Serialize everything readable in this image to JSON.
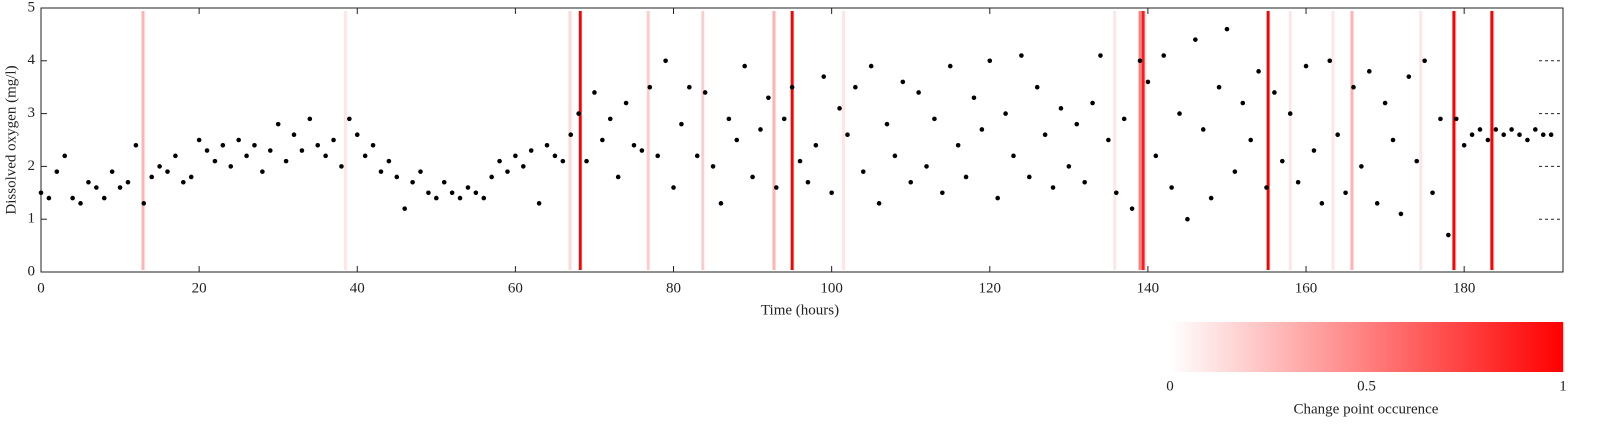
{
  "chart_data": {
    "type": "scatter",
    "xlabel": "Time (hours)",
    "ylabel": "Dissolved oxygen (mg/l)",
    "xlim": [
      0,
      192.5
    ],
    "ylim": [
      0,
      5
    ],
    "xticks": [
      0,
      20,
      40,
      60,
      80,
      100,
      120,
      140,
      160,
      180
    ],
    "yticks": [
      0,
      1,
      2,
      3,
      4,
      5
    ],
    "color": "#000000",
    "x": [
      0,
      1,
      2,
      3,
      4,
      5,
      6,
      7,
      8,
      9,
      10,
      11,
      12,
      13,
      14,
      15,
      16,
      17,
      18,
      19,
      20,
      21,
      22,
      23,
      24,
      25,
      26,
      27,
      28,
      29,
      30,
      31,
      32,
      33,
      34,
      35,
      36,
      37,
      38,
      39,
      40,
      41,
      42,
      43,
      44,
      45,
      46,
      47,
      48,
      49,
      50,
      51,
      52,
      53,
      54,
      55,
      56,
      57,
      58,
      59,
      60,
      61,
      62,
      63,
      64,
      65,
      66,
      67,
      68,
      69,
      70,
      71,
      72,
      73,
      74,
      75,
      76,
      77,
      78,
      79,
      80,
      81,
      82,
      83,
      84,
      85,
      86,
      87,
      88,
      89,
      90,
      91,
      92,
      93,
      94,
      95,
      96,
      97,
      98,
      99,
      100,
      101,
      102,
      103,
      104,
      105,
      106,
      107,
      108,
      109,
      110,
      111,
      112,
      113,
      114,
      115,
      116,
      117,
      118,
      119,
      120,
      121,
      122,
      123,
      124,
      125,
      126,
      127,
      128,
      129,
      130,
      131,
      132,
      133,
      134,
      135,
      136,
      137,
      138,
      139,
      140,
      141,
      142,
      143,
      144,
      145,
      146,
      147,
      148,
      149,
      150,
      151,
      152,
      153,
      154,
      155,
      156,
      157,
      158,
      159,
      160,
      161,
      162,
      163,
      164,
      165,
      166,
      167,
      168,
      169,
      170,
      171,
      172,
      173,
      174,
      175,
      176,
      177,
      178,
      179,
      180,
      181,
      182,
      183,
      184,
      185,
      186,
      187,
      188,
      189,
      190,
      191
    ],
    "values": [
      1.5,
      1.4,
      1.9,
      2.2,
      1.4,
      1.3,
      1.7,
      1.6,
      1.4,
      1.9,
      1.6,
      1.7,
      2.4,
      1.3,
      1.8,
      2.0,
      1.9,
      2.2,
      1.7,
      1.8,
      2.5,
      2.3,
      2.1,
      2.4,
      2.0,
      2.5,
      2.2,
      2.4,
      1.9,
      2.3,
      2.8,
      2.1,
      2.6,
      2.3,
      2.9,
      2.4,
      2.2,
      2.5,
      2.0,
      2.9,
      2.6,
      2.2,
      2.4,
      1.9,
      2.1,
      1.8,
      1.2,
      1.7,
      1.9,
      1.5,
      1.4,
      1.7,
      1.5,
      1.4,
      1.6,
      1.5,
      1.4,
      1.8,
      2.1,
      1.9,
      2.2,
      2.0,
      2.3,
      1.3,
      2.4,
      2.2,
      2.1,
      2.6,
      3.0,
      2.1,
      3.4,
      2.5,
      2.9,
      1.8,
      3.2,
      2.4,
      2.3,
      3.5,
      2.2,
      4.0,
      1.6,
      2.8,
      3.5,
      2.2,
      3.4,
      2.0,
      1.3,
      2.9,
      2.5,
      3.9,
      1.8,
      2.7,
      3.3,
      1.6,
      2.9,
      3.5,
      2.1,
      1.7,
      2.4,
      3.7,
      1.5,
      3.1,
      2.6,
      3.5,
      1.9,
      3.9,
      1.3,
      2.8,
      2.2,
      3.6,
      1.7,
      3.4,
      2.0,
      2.9,
      1.5,
      3.9,
      2.4,
      1.8,
      3.3,
      2.7,
      4.0,
      1.4,
      3.0,
      2.2,
      4.1,
      1.8,
      3.5,
      2.6,
      1.6,
      3.1,
      2.0,
      2.8,
      1.7,
      3.2,
      4.1,
      2.5,
      1.5,
      2.9,
      1.2,
      4.0,
      3.6,
      2.2,
      4.1,
      1.6,
      3.0,
      1.0,
      4.4,
      2.7,
      1.4,
      3.5,
      4.6,
      1.9,
      3.2,
      2.5,
      3.8,
      1.6,
      3.4,
      2.1,
      3.0,
      1.7,
      3.9,
      2.3,
      1.3,
      4.0,
      2.6,
      1.5,
      3.5,
      2.0,
      3.8,
      1.3,
      3.2,
      2.5,
      1.1,
      3.7,
      2.1,
      4.0,
      1.5,
      2.9,
      0.7,
      2.9,
      2.4,
      2.6,
      2.7,
      2.5,
      2.7,
      2.6,
      2.7,
      2.6,
      2.5,
      2.7,
      2.6,
      2.6
    ],
    "changepoints": {
      "x": [
        12.9,
        38.5,
        66.9,
        68.2,
        76.8,
        83.7,
        92.7,
        95.0,
        101.5,
        135.8,
        139.0,
        139.4,
        155.2,
        158.0,
        163.4,
        165.8,
        174.5,
        178.7,
        183.5
      ],
      "values": [
        0.3,
        0.1,
        0.15,
        1,
        0.2,
        0.2,
        0.3,
        1,
        0.1,
        0.1,
        0.5,
        0.9,
        1,
        0.1,
        0.1,
        0.3,
        0.1,
        1,
        1
      ]
    },
    "colorbar": {
      "label": "Change point occurence",
      "lim": [
        0,
        1
      ],
      "ticks": [
        0,
        0.5,
        1
      ],
      "colors": [
        "#ffffff",
        "#ff0000"
      ]
    }
  }
}
